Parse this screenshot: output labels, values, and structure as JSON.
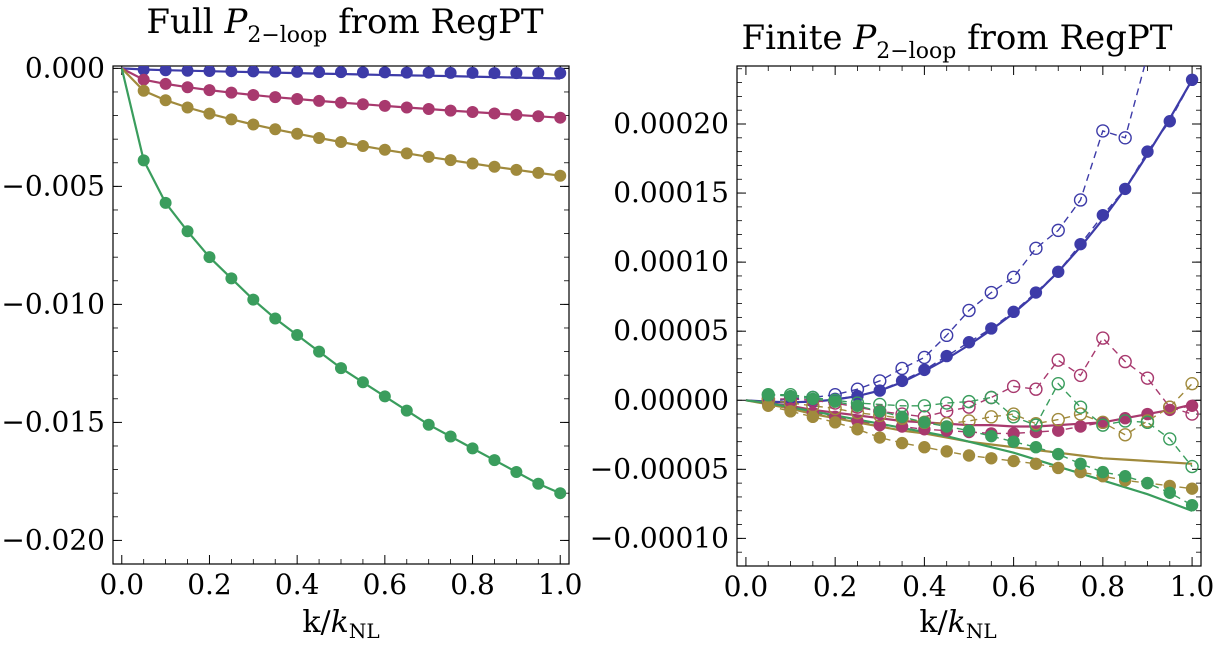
{
  "chart_data": [
    {
      "type": "scatter",
      "title": {
        "prefix": "Full ",
        "symbol": "P",
        "sub": "2−loop",
        "suffix": " from RegPT"
      },
      "xlabel": {
        "k": "k/",
        "symbol": "k",
        "sub": "NL"
      },
      "xlim": [
        -0.02,
        1.02
      ],
      "ylim": [
        -0.021,
        0.0001
      ],
      "xticks": [
        0.0,
        0.2,
        0.4,
        0.6,
        0.8,
        1.0
      ],
      "xtick_labels": [
        "0.0",
        "0.2",
        "0.4",
        "0.6",
        "0.8",
        "1.0"
      ],
      "yticks": [
        0.0,
        -0.005,
        -0.01,
        -0.015,
        -0.02
      ],
      "ytick_labels": [
        "0.000",
        "−0.005",
        "−0.010",
        "−0.015",
        "−0.020"
      ],
      "grid": false,
      "series": [
        {
          "color": "#3d3ba8",
          "x": [
            0.05,
            0.1,
            0.15,
            0.2,
            0.25,
            0.3,
            0.35,
            0.4,
            0.45,
            0.5,
            0.55,
            0.6,
            0.65,
            0.7,
            0.75,
            0.8,
            0.85,
            0.9,
            0.95,
            1.0
          ],
          "points": [
            -6e-05,
            -8e-05,
            -0.0001,
            -0.00011,
            -0.00012,
            -0.00013,
            -0.00014,
            -0.00015,
            -0.00016,
            -0.00016,
            -0.00017,
            -0.00017,
            -0.00018,
            -0.00018,
            -0.00019,
            -0.00019,
            -0.0002,
            -0.0002,
            -0.0002,
            -0.0002
          ],
          "curve": [
            -5e-05,
            -8e-05,
            -0.0001,
            -0.00012,
            -0.00014,
            -0.00016,
            -0.00018,
            -0.0002,
            -0.00022,
            -0.00024,
            -0.00026,
            -0.00028,
            -0.0003,
            -0.00031,
            -0.00033,
            -0.00035,
            -0.00037,
            -0.00039,
            -0.00041,
            -0.00043
          ]
        },
        {
          "color": "#a8396e",
          "x": [
            0.05,
            0.1,
            0.15,
            0.2,
            0.25,
            0.3,
            0.35,
            0.4,
            0.45,
            0.5,
            0.55,
            0.6,
            0.65,
            0.7,
            0.75,
            0.8,
            0.85,
            0.9,
            0.95,
            1.0
          ],
          "points": [
            -0.00048,
            -0.00066,
            -0.0008,
            -0.00092,
            -0.00103,
            -0.00113,
            -0.00122,
            -0.0013,
            -0.00138,
            -0.00145,
            -0.00152,
            -0.00159,
            -0.00166,
            -0.00172,
            -0.00179,
            -0.00185,
            -0.00191,
            -0.00197,
            -0.00203,
            -0.00209
          ],
          "curve": [
            -0.00048,
            -0.00066,
            -0.0008,
            -0.00092,
            -0.00103,
            -0.00113,
            -0.00122,
            -0.0013,
            -0.00138,
            -0.00145,
            -0.00152,
            -0.00159,
            -0.00166,
            -0.00172,
            -0.00179,
            -0.00185,
            -0.00191,
            -0.00197,
            -0.00203,
            -0.00209
          ]
        },
        {
          "color": "#a08a3c",
          "x": [
            0.05,
            0.1,
            0.15,
            0.2,
            0.25,
            0.3,
            0.35,
            0.4,
            0.45,
            0.5,
            0.55,
            0.6,
            0.65,
            0.7,
            0.75,
            0.8,
            0.85,
            0.9,
            0.95,
            1.0
          ],
          "points": [
            -0.00095,
            -0.00135,
            -0.00166,
            -0.00192,
            -0.00216,
            -0.00238,
            -0.00258,
            -0.00277,
            -0.00295,
            -0.00312,
            -0.00329,
            -0.00345,
            -0.0036,
            -0.00375,
            -0.00389,
            -0.00403,
            -0.00417,
            -0.0043,
            -0.00443,
            -0.00455
          ],
          "curve": [
            -0.00095,
            -0.00135,
            -0.00166,
            -0.00192,
            -0.00216,
            -0.00238,
            -0.00258,
            -0.00277,
            -0.00295,
            -0.00312,
            -0.00329,
            -0.00345,
            -0.0036,
            -0.00375,
            -0.00389,
            -0.00403,
            -0.00417,
            -0.0043,
            -0.00443,
            -0.00455
          ]
        },
        {
          "color": "#3a9d5d",
          "x": [
            0.05,
            0.1,
            0.15,
            0.2,
            0.25,
            0.3,
            0.35,
            0.4,
            0.45,
            0.5,
            0.55,
            0.6,
            0.65,
            0.7,
            0.75,
            0.8,
            0.85,
            0.9,
            0.95,
            1.0
          ],
          "points": [
            -0.0039,
            -0.0057,
            -0.0069,
            -0.008,
            -0.0089,
            -0.0098,
            -0.0106,
            -0.0113,
            -0.012,
            -0.0127,
            -0.0133,
            -0.0139,
            -0.0145,
            -0.0151,
            -0.0156,
            -0.0161,
            -0.0166,
            -0.0171,
            -0.0176,
            -0.018
          ],
          "curve": [
            -0.0039,
            -0.0057,
            -0.0069,
            -0.008,
            -0.0089,
            -0.0098,
            -0.0106,
            -0.0113,
            -0.012,
            -0.0127,
            -0.0133,
            -0.0139,
            -0.0145,
            -0.0151,
            -0.0156,
            -0.0161,
            -0.0166,
            -0.0171,
            -0.0176,
            -0.018
          ]
        }
      ]
    },
    {
      "type": "scatter",
      "title": {
        "prefix": "Finite ",
        "symbol": "P",
        "sub": "2−loop",
        "suffix": " from RegPT"
      },
      "xlabel": {
        "k": "k/",
        "symbol": "k",
        "sub": "NL"
      },
      "xlim": [
        -0.02,
        1.02
      ],
      "ylim": [
        -0.00012,
        0.000242
      ],
      "xticks": [
        0.0,
        0.2,
        0.4,
        0.6,
        0.8,
        1.0
      ],
      "xtick_labels": [
        "0.0",
        "0.2",
        "0.4",
        "0.6",
        "0.8",
        "1.0"
      ],
      "yticks": [
        -0.0001,
        -5e-05,
        0.0,
        5e-05,
        0.0001,
        0.00015,
        0.0002
      ],
      "ytick_labels": [
        "−0.00010",
        "−0.00005",
        "0.00000",
        "0.00005",
        "0.00010",
        "0.00015",
        "0.00020"
      ],
      "grid": false,
      "series": [
        {
          "color": "#3d3ba8",
          "x": [
            0.05,
            0.1,
            0.15,
            0.2,
            0.25,
            0.3,
            0.35,
            0.4,
            0.45,
            0.5,
            0.55,
            0.6,
            0.65,
            0.7,
            0.75,
            0.8,
            0.85,
            0.9,
            0.95,
            1.0
          ],
          "filled": [
            -1e-06,
            -2e-06,
            -1e-06,
            1e-06,
            3e-06,
            7e-06,
            1.4e-05,
            2.2e-05,
            3.2e-05,
            4.2e-05,
            5.2e-05,
            6.4e-05,
            7.8e-05,
            9.3e-05,
            0.000113,
            0.000134,
            0.000153,
            0.00018,
            0.000202,
            0.000232
          ],
          "open": [
            -1e-06,
            1e-06,
            2e-06,
            4e-06,
            8e-06,
            1.4e-05,
            2.3e-05,
            3.1e-05,
            4.7e-05,
            6.5e-05,
            7.8e-05,
            8.9e-05,
            0.00011,
            0.000123,
            0.000145,
            0.000195,
            0.00019,
            0.00025,
            null,
            null
          ],
          "curve": [
            -1e-06,
            -1.5e-06,
            -1e-06,
            5e-07,
            3e-06,
            7e-06,
            1.3e-05,
            2.1e-05,
            3e-05,
            4e-05,
            5.1e-05,
            6.3e-05,
            7.7e-05,
            9.3e-05,
            0.000111,
            0.000131,
            0.000153,
            0.000178,
            0.000204,
            0.000232
          ]
        },
        {
          "color": "#a8396e",
          "x": [
            0.05,
            0.1,
            0.15,
            0.2,
            0.25,
            0.3,
            0.35,
            0.4,
            0.45,
            0.5,
            0.55,
            0.6,
            0.65,
            0.7,
            0.75,
            0.8,
            0.85,
            0.9,
            0.95,
            1.0
          ],
          "filled": [
            -3e-06,
            -6e-06,
            -9e-06,
            -1.2e-05,
            -1.5e-05,
            -1.8e-05,
            -1.9e-05,
            -2.1e-05,
            -2.2e-05,
            -2.3e-05,
            -2.4e-05,
            -2.4e-05,
            -2.3e-05,
            -2.2e-05,
            -1.9e-05,
            -1.6e-05,
            -1.3e-05,
            -1e-05,
            -7e-06,
            -4e-06
          ],
          "open": [
            1e-06,
            1e-06,
            0.0,
            -2e-06,
            -5e-06,
            -8e-06,
            -1e-05,
            -1.2e-05,
            -8e-06,
            -5e-06,
            2e-06,
            1e-05,
            8e-06,
            2.9e-05,
            1.8e-05,
            4.5e-05,
            2.8e-05,
            1.6e-05,
            -5e-06,
            -1e-05
          ],
          "curve": [
            -2e-06,
            -4e-06,
            -7e-06,
            -9e-06,
            -1.1e-05,
            -1.3e-05,
            -1.5e-05,
            -1.6e-05,
            -1.7e-05,
            -1.8e-05,
            -1.8e-05,
            -1.9e-05,
            -1.9e-05,
            -1.8e-05,
            -1.7e-05,
            -1.6e-05,
            -1.3e-05,
            -1e-05,
            -7e-06,
            -3e-06
          ]
        },
        {
          "color": "#a08a3c",
          "x": [
            0.05,
            0.1,
            0.15,
            0.2,
            0.25,
            0.3,
            0.35,
            0.4,
            0.45,
            0.5,
            0.55,
            0.6,
            0.65,
            0.7,
            0.75,
            0.8,
            0.85,
            0.9,
            0.95,
            1.0
          ],
          "filled": [
            -4e-06,
            -8e-06,
            -1.2e-05,
            -1.6e-05,
            -2.1e-05,
            -2.7e-05,
            -3.1e-05,
            -3.4e-05,
            -3.7e-05,
            -4e-05,
            -4.2e-05,
            -4.4e-05,
            -4.6e-05,
            -4.9e-05,
            -5.2e-05,
            -5.5e-05,
            -5.8e-05,
            -6e-05,
            -6.2e-05,
            -6.4e-05
          ],
          "open": [
            0.0,
            -2e-06,
            -4e-06,
            -6e-06,
            -9e-06,
            -1.1e-05,
            -1.3e-05,
            -1.6e-05,
            -1.7e-05,
            -1.5e-05,
            -1.2e-05,
            -1e-05,
            -1.7e-05,
            -1.4e-05,
            -1e-05,
            -1.6e-05,
            -2.5e-05,
            -1.5e-05,
            -5e-06,
            1.2e-05
          ],
          "curve": [
            -3e-06,
            -6e-06,
            -1e-05,
            -1.3e-05,
            -1.6e-05,
            -1.9e-05,
            -2.2e-05,
            -2.4e-05,
            -2.7e-05,
            -3e-05,
            -3.2e-05,
            -3.4e-05,
            -3.6e-05,
            -3.8e-05,
            -4e-05,
            -4.2e-05,
            -4.3e-05,
            -4.4e-05,
            -4.5e-05,
            -4.6e-05
          ]
        },
        {
          "color": "#3a9d5d",
          "x": [
            0.05,
            0.1,
            0.15,
            0.2,
            0.25,
            0.3,
            0.35,
            0.4,
            0.45,
            0.5,
            0.55,
            0.6,
            0.65,
            0.7,
            0.75,
            0.8,
            0.85,
            0.9,
            0.95,
            1.0
          ],
          "filled": [
            4e-06,
            3e-06,
            1e-06,
            -1e-06,
            -4e-06,
            -8e-06,
            -1.2e-05,
            -1.6e-05,
            -1.9e-05,
            -2.2e-05,
            -2.6e-05,
            -3e-05,
            -3.4e-05,
            -3.9e-05,
            -4.6e-05,
            -5.2e-05,
            -5.5e-05,
            -6e-05,
            -6.7e-05,
            -7.6e-05
          ],
          "open": [
            4e-06,
            4e-06,
            2e-06,
            0.0,
            -2e-06,
            -3e-06,
            -4e-06,
            -4e-06,
            -2e-06,
            -1e-06,
            2e-06,
            -1.2e-05,
            -1.8e-05,
            1.2e-05,
            -5e-06,
            -1.8e-05,
            -1.5e-05,
            -1.6e-05,
            -2.8e-05,
            -4.8e-05
          ],
          "curve": [
            -2e-06,
            -5e-06,
            -8e-06,
            -1.1e-05,
            -1.4e-05,
            -1.7e-05,
            -2e-05,
            -2.3e-05,
            -2.6e-05,
            -3e-05,
            -3.4e-05,
            -3.8e-05,
            -4.3e-05,
            -4.8e-05,
            -5.3e-05,
            -5.8e-05,
            -6.3e-05,
            -6.8e-05,
            -7.4e-05,
            -8e-05
          ]
        }
      ]
    }
  ]
}
